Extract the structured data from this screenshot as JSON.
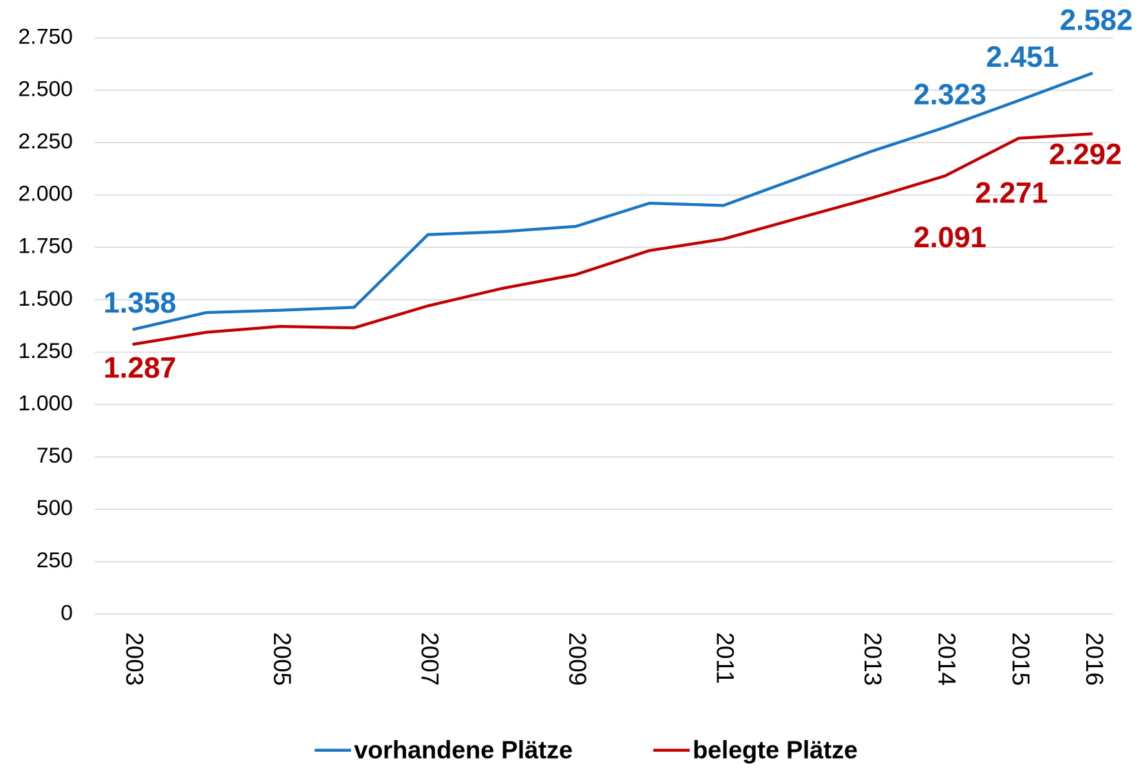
{
  "chart_data": {
    "type": "line",
    "categories": [
      "2003",
      null,
      "2005",
      null,
      "2007",
      null,
      "2009",
      null,
      "2011",
      null,
      "2013",
      "2014",
      "2015",
      "2016"
    ],
    "series": [
      {
        "name": "vorhandene Plätze",
        "color": "#1a75c2",
        "values": [
          1358,
          1439,
          1450,
          1464,
          1811,
          1825,
          1850,
          1961,
          1950,
          2079,
          2208,
          2323,
          2451,
          2582
        ],
        "value_labels": [
          "1.358",
          null,
          null,
          null,
          null,
          null,
          null,
          null,
          null,
          null,
          null,
          "2.323",
          "2.451",
          "2.582"
        ]
      },
      {
        "name": "belegte Plätze",
        "color": "#c00000",
        "values": [
          1287,
          1345,
          1373,
          1366,
          1471,
          1554,
          1620,
          1735,
          1790,
          1888,
          1985,
          2091,
          2271,
          2292
        ],
        "value_labels": [
          "1.287",
          null,
          null,
          null,
          null,
          null,
          null,
          null,
          null,
          null,
          null,
          "2.091",
          "2.271",
          "2.292"
        ]
      }
    ],
    "ylim": [
      0,
      2750
    ],
    "yticks": [
      0,
      250,
      500,
      750,
      {
        "value": 1000,
        "label": "1.000"
      },
      {
        "value": 1250,
        "label": "1.250"
      },
      {
        "value": 1500,
        "label": "1.500"
      },
      {
        "value": 1750,
        "label": "1.750"
      },
      {
        "value": 2000,
        "label": "2.000"
      },
      {
        "value": 2250,
        "label": "2.250"
      },
      {
        "value": 2500,
        "label": "2.500"
      },
      {
        "value": 2750,
        "label": "2.750"
      }
    ],
    "grid": true,
    "legend": "bottom"
  }
}
